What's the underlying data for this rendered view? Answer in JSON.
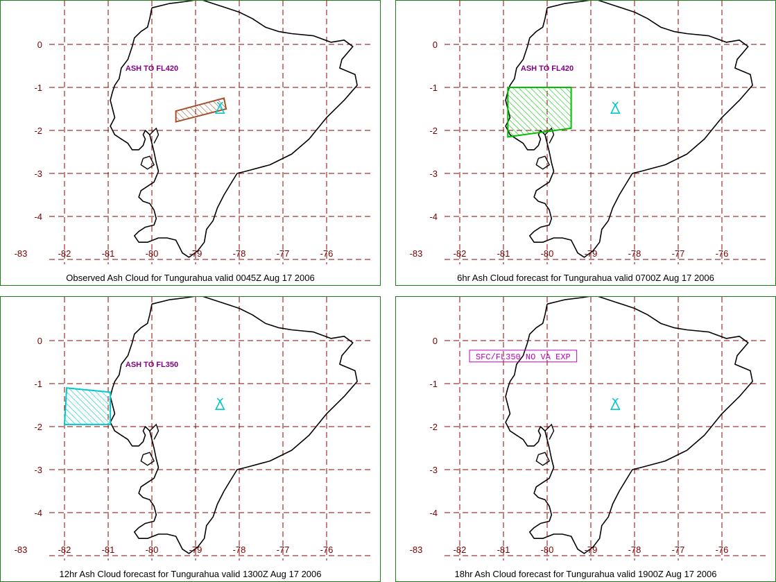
{
  "map": {
    "grid": {
      "longitudes": [
        "-83",
        "-82",
        "-81",
        "-80",
        "-79",
        "-78",
        "-77",
        "-76"
      ],
      "latitudes": [
        "0",
        "-1",
        "-2",
        "-3",
        "-4"
      ]
    },
    "volcano": {
      "name": "Tungurahua",
      "lon": -78.44,
      "lat": -1.47,
      "color": "#00c8c8"
    }
  },
  "panels": [
    {
      "caption": "Observed Ash Cloud for Tungurahua valid 0045Z Aug 17 2006",
      "ash_label": "ASH TO FL420",
      "ash_label_style": "plain",
      "ash_label_pos": {
        "lon": -80.0,
        "lat": -0.55
      },
      "polygon": [
        [
          -79.45,
          -1.55
        ],
        [
          -78.35,
          -1.25
        ],
        [
          -78.3,
          -1.5
        ],
        [
          -79.45,
          -1.8
        ]
      ],
      "polygon_color": "#a0522d"
    },
    {
      "caption": "6hr Ash Cloud forecast for Tungurahua valid 0700Z Aug 17 2006",
      "ash_label": "ASH TO FL420",
      "ash_label_style": "plain",
      "ash_label_pos": {
        "lon": -80.0,
        "lat": -0.55
      },
      "polygon": [
        [
          -80.9,
          -1.0
        ],
        [
          -79.45,
          -1.0
        ],
        [
          -79.45,
          -1.95
        ],
        [
          -80.9,
          -2.15
        ]
      ],
      "polygon_color": "#00c000"
    },
    {
      "caption": "12hr Ash Cloud forecast for Tungurahua valid 1300Z Aug 17 2006",
      "ash_label": "ASH TO FL350",
      "ash_label_style": "plain",
      "ash_label_pos": {
        "lon": -80.0,
        "lat": -0.55
      },
      "polygon": [
        [
          -81.95,
          -1.1
        ],
        [
          -80.95,
          -1.2
        ],
        [
          -80.95,
          -1.95
        ],
        [
          -82.0,
          -1.95
        ]
      ],
      "polygon_color": "#00c8c8"
    },
    {
      "caption": "18hr Ash Cloud forecast for Tungurahua valid 1900Z Aug 17 2006",
      "ash_label": "SFC/FL350 NO VA EXP",
      "ash_label_style": "boxed",
      "ash_label_pos": {
        "lon": -80.55,
        "lat": -0.4
      },
      "polygon": null,
      "polygon_color": null
    }
  ]
}
